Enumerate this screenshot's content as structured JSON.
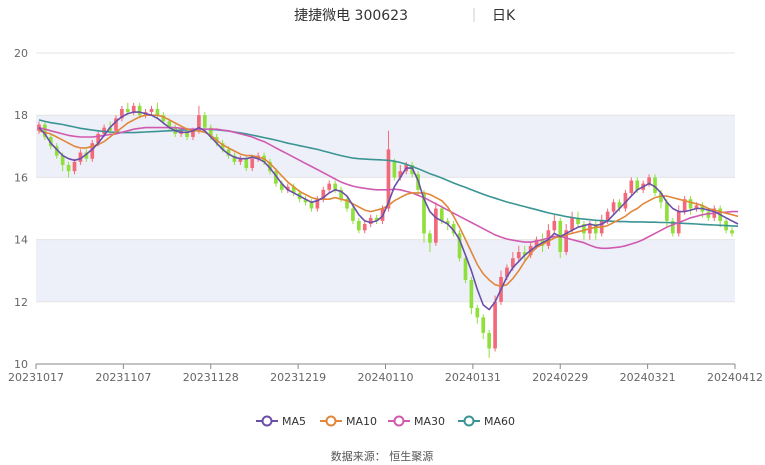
{
  "header": {
    "name": "捷捷微电 300623",
    "period": "日K"
  },
  "source": "数据来源： 恒生聚源",
  "colors": {
    "up": "#f26a7a",
    "down": "#8fe03c",
    "ma5": "#6b4fa8",
    "ma10": "#e0873a",
    "ma30": "#d05ab0",
    "ma60": "#3b9494",
    "band": "#eef0f9",
    "grid": "#e4e4e4",
    "axis": "#888888"
  },
  "chart_data": {
    "type": "candlestick",
    "ylim": [
      10,
      20
    ],
    "y_ticks": [
      "10",
      "12",
      "14",
      "16",
      "18",
      "20"
    ],
    "x_ticks": [
      "20231017",
      "20231107",
      "20231128",
      "20231219",
      "20240110",
      "20240131",
      "20240229",
      "20240321",
      "20240412"
    ],
    "legend": [
      "MA5",
      "MA10",
      "MA30",
      "MA60"
    ],
    "candles": [
      [
        17.5,
        17.7,
        17.8,
        17.4
      ],
      [
        17.7,
        17.3,
        17.8,
        17.2
      ],
      [
        17.3,
        17.0,
        17.4,
        16.9
      ],
      [
        17.0,
        16.7,
        17.1,
        16.6
      ],
      [
        16.7,
        16.4,
        16.8,
        16.2
      ],
      [
        16.4,
        16.2,
        16.5,
        16.0
      ],
      [
        16.2,
        16.5,
        16.6,
        16.1
      ],
      [
        16.5,
        16.8,
        16.9,
        16.4
      ],
      [
        16.8,
        16.6,
        16.9,
        16.5
      ],
      [
        16.6,
        17.1,
        17.2,
        16.5
      ],
      [
        17.1,
        17.4,
        17.5,
        17.0
      ],
      [
        17.4,
        17.6,
        17.7,
        17.3
      ],
      [
        17.6,
        17.5,
        17.8,
        17.4
      ],
      [
        17.5,
        17.9,
        18.0,
        17.4
      ],
      [
        17.9,
        18.2,
        18.3,
        17.8
      ],
      [
        18.2,
        18.1,
        18.4,
        18.0
      ],
      [
        18.1,
        18.3,
        18.4,
        18.0
      ],
      [
        18.3,
        18.0,
        18.4,
        17.9
      ],
      [
        18.0,
        18.1,
        18.2,
        17.9
      ],
      [
        18.1,
        18.2,
        18.3,
        18.0
      ],
      [
        18.2,
        18.0,
        18.4,
        17.9
      ],
      [
        18.0,
        17.8,
        18.1,
        17.7
      ],
      [
        17.8,
        17.6,
        17.9,
        17.5
      ],
      [
        17.6,
        17.4,
        17.7,
        17.3
      ],
      [
        17.4,
        17.5,
        17.6,
        17.3
      ],
      [
        17.5,
        17.3,
        17.6,
        17.2
      ],
      [
        17.3,
        17.5,
        17.6,
        17.2
      ],
      [
        17.5,
        18.0,
        18.3,
        17.4
      ],
      [
        18.0,
        17.6,
        18.1,
        17.5
      ],
      [
        17.6,
        17.3,
        17.7,
        17.2
      ],
      [
        17.3,
        17.1,
        17.4,
        17.0
      ],
      [
        17.1,
        16.9,
        17.2,
        16.8
      ],
      [
        16.9,
        16.7,
        17.0,
        16.6
      ],
      [
        16.7,
        16.5,
        16.8,
        16.4
      ],
      [
        16.5,
        16.6,
        16.7,
        16.4
      ],
      [
        16.6,
        16.3,
        16.7,
        16.2
      ],
      [
        16.3,
        16.6,
        16.7,
        16.2
      ],
      [
        16.6,
        16.7,
        16.8,
        16.5
      ],
      [
        16.7,
        16.5,
        16.8,
        16.4
      ],
      [
        16.5,
        16.2,
        16.6,
        16.1
      ],
      [
        16.2,
        15.8,
        16.3,
        15.7
      ],
      [
        15.8,
        15.6,
        15.9,
        15.5
      ],
      [
        15.6,
        15.7,
        15.8,
        15.5
      ],
      [
        15.7,
        15.5,
        15.8,
        15.4
      ],
      [
        15.5,
        15.3,
        15.6,
        15.2
      ],
      [
        15.3,
        15.2,
        15.4,
        15.1
      ],
      [
        15.2,
        15.0,
        15.3,
        14.9
      ],
      [
        15.0,
        15.3,
        15.4,
        14.9
      ],
      [
        15.3,
        15.6,
        15.7,
        15.2
      ],
      [
        15.6,
        15.8,
        15.9,
        15.5
      ],
      [
        15.8,
        15.6,
        15.9,
        15.5
      ],
      [
        15.6,
        15.3,
        15.7,
        15.2
      ],
      [
        15.3,
        15.0,
        15.4,
        14.9
      ],
      [
        15.0,
        14.6,
        15.1,
        14.5
      ],
      [
        14.6,
        14.3,
        14.7,
        14.2
      ],
      [
        14.3,
        14.5,
        14.6,
        14.2
      ],
      [
        14.5,
        14.7,
        14.8,
        14.4
      ],
      [
        14.7,
        14.6,
        14.8,
        14.5
      ],
      [
        14.6,
        15.0,
        15.1,
        14.5
      ],
      [
        15.0,
        16.9,
        17.5,
        14.9
      ],
      [
        16.5,
        16.0,
        16.6,
        15.9
      ],
      [
        16.0,
        16.2,
        16.4,
        15.9
      ],
      [
        16.2,
        16.4,
        16.5,
        16.1
      ],
      [
        16.4,
        16.1,
        16.5,
        16.0
      ],
      [
        16.1,
        15.6,
        16.2,
        15.4
      ],
      [
        15.5,
        14.2,
        15.6,
        13.9
      ],
      [
        14.2,
        13.9,
        14.3,
        13.6
      ],
      [
        13.9,
        15.0,
        15.2,
        13.8
      ],
      [
        15.0,
        14.6,
        15.1,
        14.5
      ],
      [
        14.6,
        14.5,
        14.7,
        14.3
      ],
      [
        14.5,
        14.2,
        14.6,
        14.1
      ],
      [
        14.2,
        13.4,
        14.3,
        13.3
      ],
      [
        13.4,
        12.7,
        13.5,
        12.6
      ],
      [
        12.7,
        11.8,
        12.8,
        11.6
      ],
      [
        11.8,
        11.5,
        11.9,
        11.3
      ],
      [
        11.5,
        11.0,
        11.6,
        10.8
      ],
      [
        11.0,
        10.5,
        11.1,
        10.2
      ],
      [
        10.5,
        12.0,
        12.2,
        10.4
      ],
      [
        12.0,
        12.8,
        13.0,
        11.9
      ],
      [
        12.8,
        13.1,
        13.2,
        12.7
      ],
      [
        13.1,
        13.4,
        13.6,
        13.0
      ],
      [
        13.4,
        13.6,
        13.8,
        13.3
      ],
      [
        13.6,
        13.5,
        13.8,
        13.3
      ],
      [
        13.5,
        13.8,
        13.9,
        13.4
      ],
      [
        13.8,
        14.0,
        14.1,
        13.7
      ],
      [
        14.0,
        13.8,
        14.2,
        13.6
      ],
      [
        13.8,
        14.3,
        14.5,
        13.7
      ],
      [
        14.3,
        14.6,
        14.8,
        14.2
      ],
      [
        14.6,
        13.6,
        14.7,
        13.4
      ],
      [
        13.6,
        14.3,
        14.5,
        13.5
      ],
      [
        14.3,
        14.7,
        14.9,
        14.2
      ],
      [
        14.7,
        14.5,
        14.9,
        14.4
      ],
      [
        14.5,
        14.2,
        14.6,
        14.0
      ],
      [
        14.2,
        14.5,
        14.6,
        14.0
      ],
      [
        14.5,
        14.2,
        14.6,
        14.0
      ],
      [
        14.2,
        14.6,
        14.8,
        14.1
      ],
      [
        14.6,
        14.9,
        15.0,
        14.5
      ],
      [
        14.9,
        15.2,
        15.3,
        14.8
      ],
      [
        15.2,
        15.0,
        15.3,
        14.9
      ],
      [
        15.0,
        15.5,
        15.6,
        14.9
      ],
      [
        15.5,
        15.9,
        16.0,
        15.4
      ],
      [
        15.9,
        15.6,
        16.0,
        15.5
      ],
      [
        15.6,
        15.8,
        15.9,
        15.5
      ],
      [
        15.8,
        16.0,
        16.1,
        15.7
      ],
      [
        16.0,
        15.5,
        16.1,
        15.4
      ],
      [
        15.5,
        15.2,
        15.6,
        15.0
      ],
      [
        15.2,
        14.6,
        15.3,
        14.4
      ],
      [
        14.6,
        14.2,
        14.7,
        14.1
      ],
      [
        14.2,
        14.9,
        15.1,
        14.1
      ],
      [
        14.9,
        15.3,
        15.4,
        14.8
      ],
      [
        15.3,
        15.0,
        15.4,
        14.8
      ],
      [
        15.0,
        15.1,
        15.2,
        14.9
      ],
      [
        15.1,
        14.9,
        15.2,
        14.7
      ],
      [
        14.9,
        14.7,
        15.0,
        14.6
      ],
      [
        14.7,
        15.0,
        15.1,
        14.6
      ],
      [
        15.0,
        14.6,
        15.1,
        14.4
      ],
      [
        14.6,
        14.3,
        14.7,
        14.2
      ],
      [
        14.3,
        14.2,
        14.4,
        14.1
      ]
    ],
    "ma_series": {
      "MA5": [
        17.6,
        17.4,
        17.1,
        16.9,
        16.7,
        16.6,
        16.55,
        16.6,
        16.75,
        16.9,
        17.1,
        17.35,
        17.6,
        17.8,
        17.95,
        18.05,
        18.1,
        18.1,
        18.05,
        18.0,
        17.9,
        17.75,
        17.6,
        17.5,
        17.45,
        17.45,
        17.5,
        17.6,
        17.5,
        17.3,
        17.1,
        16.9,
        16.75,
        16.65,
        16.6,
        16.6,
        16.65,
        16.6,
        16.5,
        16.3,
        16.05,
        15.8,
        15.6,
        15.5,
        15.4,
        15.3,
        15.2,
        15.25,
        15.35,
        15.5,
        15.6,
        15.55,
        15.4,
        15.1,
        14.8,
        14.6,
        14.55,
        14.6,
        14.75,
        15.2,
        15.7,
        16.0,
        16.3,
        16.3,
        15.9,
        15.3,
        14.9,
        14.7,
        14.6,
        14.5,
        14.3,
        14.0,
        13.5,
        13.0,
        12.4,
        11.9,
        11.75,
        12.0,
        12.4,
        12.8,
        13.1,
        13.3,
        13.5,
        13.65,
        13.8,
        13.9,
        14.0,
        14.2,
        14.1,
        14.2,
        14.3,
        14.4,
        14.45,
        14.5,
        14.45,
        14.5,
        14.6,
        14.8,
        15.0,
        15.2,
        15.4,
        15.6,
        15.7,
        15.8,
        15.7,
        15.5,
        15.2,
        15.0,
        14.9,
        14.9,
        14.95,
        15.0,
        15.0,
        14.95,
        14.9,
        14.8,
        14.7,
        14.6,
        14.5
      ],
      "MA10": [
        17.5,
        17.45,
        17.4,
        17.3,
        17.2,
        17.1,
        17.0,
        16.95,
        16.95,
        17.0,
        17.05,
        17.15,
        17.3,
        17.45,
        17.6,
        17.75,
        17.85,
        17.95,
        18.0,
        18.0,
        18.0,
        17.95,
        17.85,
        17.75,
        17.65,
        17.55,
        17.5,
        17.5,
        17.45,
        17.35,
        17.2,
        17.05,
        16.95,
        16.85,
        16.75,
        16.7,
        16.7,
        16.65,
        16.6,
        16.45,
        16.25,
        16.05,
        15.85,
        15.7,
        15.55,
        15.45,
        15.35,
        15.3,
        15.3,
        15.3,
        15.35,
        15.3,
        15.25,
        15.15,
        15.05,
        14.95,
        14.9,
        14.95,
        15.0,
        15.1,
        15.25,
        15.35,
        15.45,
        15.5,
        15.5,
        15.5,
        15.45,
        15.35,
        15.25,
        15.05,
        14.75,
        14.4,
        14.0,
        13.6,
        13.2,
        12.9,
        12.7,
        12.55,
        12.5,
        12.55,
        12.75,
        13.0,
        13.3,
        13.55,
        13.75,
        13.85,
        13.95,
        14.05,
        14.1,
        14.15,
        14.2,
        14.25,
        14.3,
        14.35,
        14.4,
        14.4,
        14.45,
        14.55,
        14.65,
        14.75,
        14.9,
        15.0,
        15.15,
        15.25,
        15.35,
        15.4,
        15.4,
        15.35,
        15.3,
        15.25,
        15.2,
        15.15,
        15.1,
        15.0,
        14.95,
        14.9,
        14.85,
        14.8,
        14.75
      ],
      "MA30": [
        17.6,
        17.55,
        17.5,
        17.45,
        17.4,
        17.35,
        17.32,
        17.3,
        17.3,
        17.3,
        17.32,
        17.35,
        17.38,
        17.4,
        17.45,
        17.5,
        17.55,
        17.58,
        17.6,
        17.6,
        17.6,
        17.6,
        17.6,
        17.6,
        17.58,
        17.55,
        17.55,
        17.55,
        17.55,
        17.55,
        17.55,
        17.52,
        17.5,
        17.45,
        17.4,
        17.35,
        17.3,
        17.22,
        17.15,
        17.05,
        16.95,
        16.85,
        16.75,
        16.65,
        16.55,
        16.45,
        16.35,
        16.25,
        16.15,
        16.05,
        15.95,
        15.85,
        15.78,
        15.72,
        15.68,
        15.65,
        15.62,
        15.6,
        15.6,
        15.6,
        15.62,
        15.6,
        15.55,
        15.5,
        15.42,
        15.35,
        15.25,
        15.15,
        15.05,
        14.95,
        14.85,
        14.75,
        14.65,
        14.55,
        14.45,
        14.35,
        14.25,
        14.15,
        14.08,
        14.02,
        13.98,
        13.95,
        13.92,
        13.92,
        13.95,
        14.0,
        14.05,
        14.1,
        14.1,
        14.05,
        14.0,
        13.95,
        13.9,
        13.82,
        13.75,
        13.72,
        13.72,
        13.74,
        13.76,
        13.8,
        13.86,
        13.92,
        14.0,
        14.1,
        14.2,
        14.3,
        14.4,
        14.48,
        14.55,
        14.62,
        14.7,
        14.75,
        14.8,
        14.83,
        14.85,
        14.87,
        14.88,
        14.9,
        14.9
      ],
      "MA60": [
        17.85,
        17.8,
        17.76,
        17.73,
        17.7,
        17.66,
        17.62,
        17.58,
        17.55,
        17.52,
        17.5,
        17.48,
        17.46,
        17.45,
        17.44,
        17.44,
        17.44,
        17.45,
        17.46,
        17.47,
        17.48,
        17.49,
        17.5,
        17.51,
        17.52,
        17.53,
        17.54,
        17.55,
        17.55,
        17.54,
        17.53,
        17.51,
        17.49,
        17.46,
        17.43,
        17.4,
        17.36,
        17.32,
        17.28,
        17.24,
        17.2,
        17.15,
        17.1,
        17.06,
        17.02,
        16.98,
        16.94,
        16.9,
        16.85,
        16.8,
        16.75,
        16.7,
        16.66,
        16.62,
        16.6,
        16.59,
        16.58,
        16.57,
        16.56,
        16.55,
        16.52,
        16.48,
        16.42,
        16.35,
        16.28,
        16.2,
        16.12,
        16.05,
        15.98,
        15.9,
        15.82,
        15.75,
        15.68,
        15.6,
        15.53,
        15.46,
        15.39,
        15.33,
        15.27,
        15.21,
        15.16,
        15.11,
        15.06,
        15.01,
        14.96,
        14.91,
        14.86,
        14.82,
        14.78,
        14.74,
        14.71,
        14.68,
        14.66,
        14.64,
        14.62,
        14.61,
        14.6,
        14.59,
        14.58,
        14.58,
        14.57,
        14.57,
        14.57,
        14.56,
        14.56,
        14.55,
        14.55,
        14.54,
        14.53,
        14.52,
        14.51,
        14.5,
        14.49,
        14.48,
        14.47,
        14.46,
        14.45,
        14.44,
        14.43
      ]
    }
  }
}
